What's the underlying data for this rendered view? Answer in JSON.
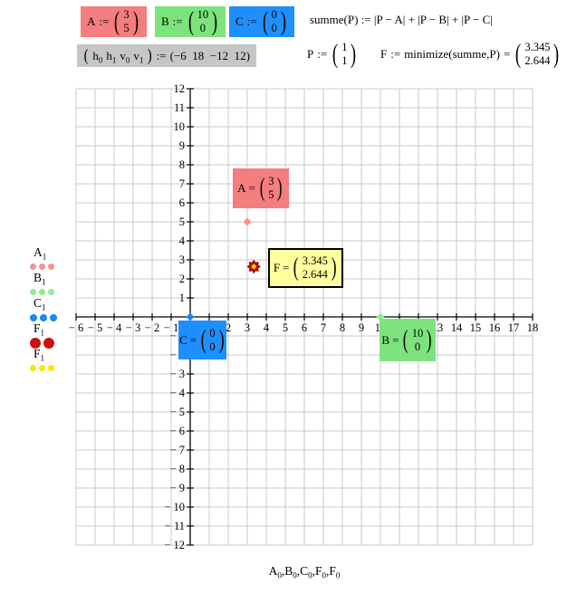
{
  "app": {
    "name": "mathcad-worksheet"
  },
  "colors": {
    "pink_bg": "#f47d7d",
    "green_bg": "#7de37d",
    "blue_bg": "#1e8fff",
    "gray_bg": "#c6c6c6",
    "yellow_bg": "#ffff9e",
    "grid_line": "#c8c8c8",
    "axis_line": "#000000",
    "trace_a": "#f49292",
    "trace_b": "#90ee90",
    "trace_c": "#1e86f0",
    "trace_f_red": "#cc1111",
    "trace_f_red_edge": "#7c0000",
    "trace_f_yellow": "#ffe400"
  },
  "definitions": {
    "A": {
      "name": "A",
      "op": ":=",
      "values": [
        "3",
        "5"
      ]
    },
    "B": {
      "name": "B",
      "op": ":=",
      "values": [
        "10",
        "0"
      ]
    },
    "C": {
      "name": "C",
      "op": ":=",
      "values": [
        "0",
        "0"
      ]
    },
    "summe": {
      "text": "summe(P) := |P − A| + |P − B| + |P − C|"
    },
    "window": {
      "items": [
        {
          "base": "h",
          "sub": "0"
        },
        {
          "base": "h",
          "sub": "1"
        },
        {
          "base": "v",
          "sub": "0"
        },
        {
          "base": "v",
          "sub": "1"
        }
      ],
      "op": ":=",
      "rhs": "(−6  18  −12  12)"
    },
    "P": {
      "name": "P",
      "op": ":=",
      "values": [
        "1",
        "1"
      ]
    },
    "F": {
      "name": "F",
      "op": ":=",
      "expr": "minimize(summe,P)",
      "eq": "=",
      "values": [
        "3.345",
        "2.644"
      ]
    }
  },
  "plot": {
    "legend": {
      "items": [
        {
          "base": "A",
          "sub": "1",
          "color_key": "trace_a",
          "dots": 3,
          "dot_size": 7
        },
        {
          "base": "B",
          "sub": "1",
          "color_key": "trace_b",
          "dots": 3,
          "dot_size": 7
        },
        {
          "base": "C",
          "sub": "1",
          "color_key": "trace_c",
          "dots": 3,
          "dot_size": 8
        },
        {
          "base": "F",
          "sub": "1",
          "color_key": "trace_f_red",
          "dots": 2,
          "dot_size": 12
        },
        {
          "base": "F",
          "sub": "1",
          "color_key": "trace_f_yellow",
          "dots": 3,
          "dot_size": 7
        }
      ]
    },
    "x_expr": {
      "items": [
        {
          "base": "A",
          "sub": "0"
        },
        {
          "base": "B",
          "sub": "0"
        },
        {
          "base": "C",
          "sub": "0"
        },
        {
          "base": "F",
          "sub": "0"
        },
        {
          "base": "F",
          "sub": "0"
        }
      ],
      "separator": ","
    },
    "annotations": {
      "A": {
        "label": "A",
        "eq": "=",
        "values": [
          "3",
          "5"
        ]
      },
      "C": {
        "label": "C",
        "eq": "=",
        "values": [
          "0",
          "0"
        ]
      },
      "B": {
        "label": "B",
        "eq": "=",
        "values": [
          "10",
          "0"
        ]
      },
      "F": {
        "label": "F",
        "eq": "=",
        "values": [
          "3.345",
          "2.644"
        ]
      }
    }
  },
  "chart_data": {
    "type": "scatter",
    "title": "",
    "x_axis": {
      "min": -6,
      "max": 18,
      "step": 1,
      "skip_labels": [
        0
      ]
    },
    "y_axis": {
      "min": -12,
      "max": 12,
      "step": 1,
      "skip_labels": [
        0
      ]
    },
    "grid": true,
    "legend_position": "left",
    "y_expressions": "A1, B1, C1, F1, F1",
    "x_expressions": "A0, B0, C0, F0, F0",
    "series": [
      {
        "name": "A1",
        "marker": "diamond",
        "color_key": "trace_a",
        "points": [
          [
            3,
            5
          ]
        ]
      },
      {
        "name": "B1",
        "marker": "diamond",
        "color_key": "trace_b",
        "points": [
          [
            10,
            0
          ]
        ]
      },
      {
        "name": "C1",
        "marker": "diamond",
        "color_key": "trace_c",
        "points": [
          [
            0,
            0
          ]
        ]
      },
      {
        "name": "F1",
        "marker": "star-large",
        "color_key": "trace_f_red",
        "points": [
          [
            3.345,
            2.644
          ]
        ]
      },
      {
        "name": "F1",
        "marker": "dot-small",
        "color_key": "trace_f_yellow",
        "points": [
          [
            3.345,
            2.644
          ]
        ]
      }
    ]
  }
}
